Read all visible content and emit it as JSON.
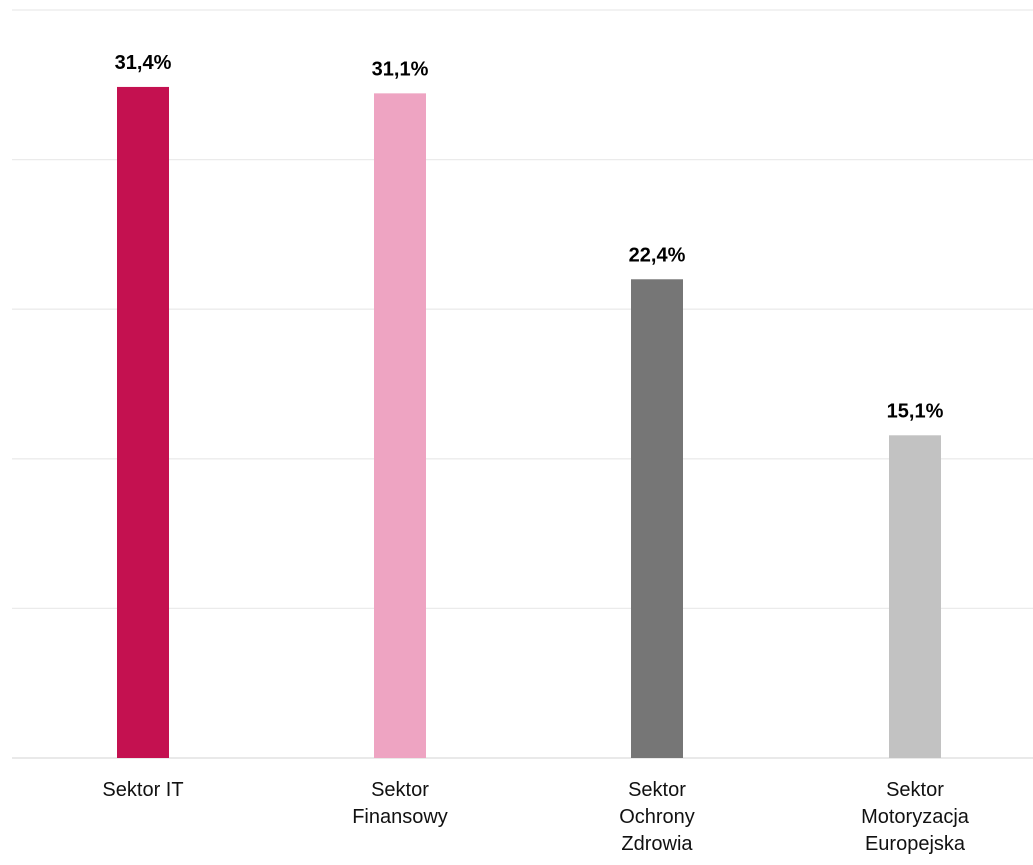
{
  "chart_data": {
    "type": "bar",
    "title": "",
    "xlabel": "",
    "ylabel": "",
    "ylim": [
      0,
      35
    ],
    "grid": true,
    "legend": "none",
    "categories": [
      [
        "Sektor IT"
      ],
      [
        "Sektor",
        "Finansowy"
      ],
      [
        "Sektor",
        "Ochrony",
        "Zdrowia"
      ],
      [
        "Sektor",
        "Motoryzacja",
        "Europejska"
      ]
    ],
    "values": [
      31.4,
      31.1,
      22.4,
      15.1
    ],
    "value_labels": [
      "31,4%",
      "31,1%",
      "22,4%",
      "15,1%"
    ],
    "colors": [
      "#c41150",
      "#eea4c2",
      "#767676",
      "#c2c2c2"
    ],
    "gridline_color": "#ebebeb",
    "label_color": "#000000"
  }
}
